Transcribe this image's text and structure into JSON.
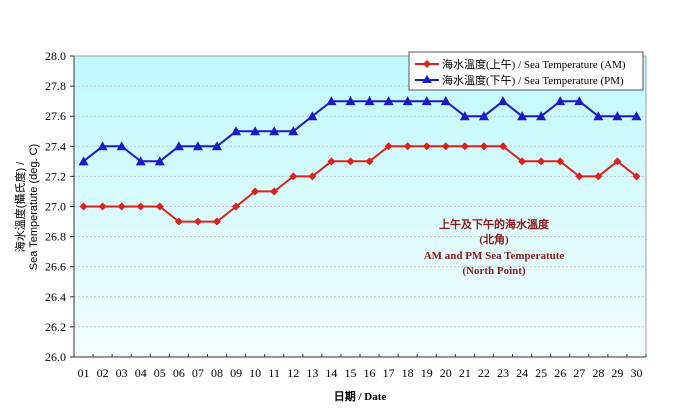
{
  "chart_data": {
    "type": "line",
    "title": "上午及下午的海水溫度 (北角) / AM and PM Sea Temperatute (North Point)",
    "annotation": [
      "上午及下午的海水溫度",
      "(北角)",
      "AM and PM Sea Temperatute",
      "(North Point)"
    ],
    "xlabel": "日期 / Date",
    "ylabel_lines": [
      "海水溫度(攝氏度) /",
      "Sea Temperatute (deg. C)"
    ],
    "categories": [
      "01",
      "02",
      "03",
      "04",
      "05",
      "06",
      "07",
      "08",
      "09",
      "10",
      "11",
      "12",
      "13",
      "14",
      "15",
      "16",
      "17",
      "18",
      "19",
      "20",
      "21",
      "22",
      "23",
      "24",
      "25",
      "26",
      "27",
      "28",
      "29",
      "30"
    ],
    "yticks": [
      "26.0",
      "26.2",
      "26.4",
      "26.6",
      "26.8",
      "27.0",
      "27.2",
      "27.4",
      "27.6",
      "27.8",
      "28.0"
    ],
    "ylim": [
      26.0,
      28.0
    ],
    "grid": true,
    "legend_position": "top-right",
    "series": [
      {
        "name": "海水溫度(上午) / Sea Temperature (AM)",
        "color": "#e0201a",
        "marker": "diamond",
        "values": [
          27.0,
          27.0,
          27.0,
          27.0,
          27.0,
          26.9,
          26.9,
          26.9,
          27.0,
          27.1,
          27.1,
          27.2,
          27.2,
          27.3,
          27.3,
          27.3,
          27.4,
          27.4,
          27.4,
          27.4,
          27.4,
          27.4,
          27.4,
          27.3,
          27.3,
          27.3,
          27.2,
          27.2,
          27.3,
          27.2
        ]
      },
      {
        "name": "海水溫度(下午) / Sea Temperature (PM)",
        "color": "#1a1acc",
        "marker": "triangle",
        "values": [
          27.3,
          27.4,
          27.4,
          27.3,
          27.3,
          27.4,
          27.4,
          27.4,
          27.5,
          27.5,
          27.5,
          27.5,
          27.6,
          27.7,
          27.7,
          27.7,
          27.7,
          27.7,
          27.7,
          27.7,
          27.6,
          27.6,
          27.7,
          27.6,
          27.6,
          27.7,
          27.7,
          27.6,
          27.6,
          27.6
        ]
      }
    ]
  }
}
